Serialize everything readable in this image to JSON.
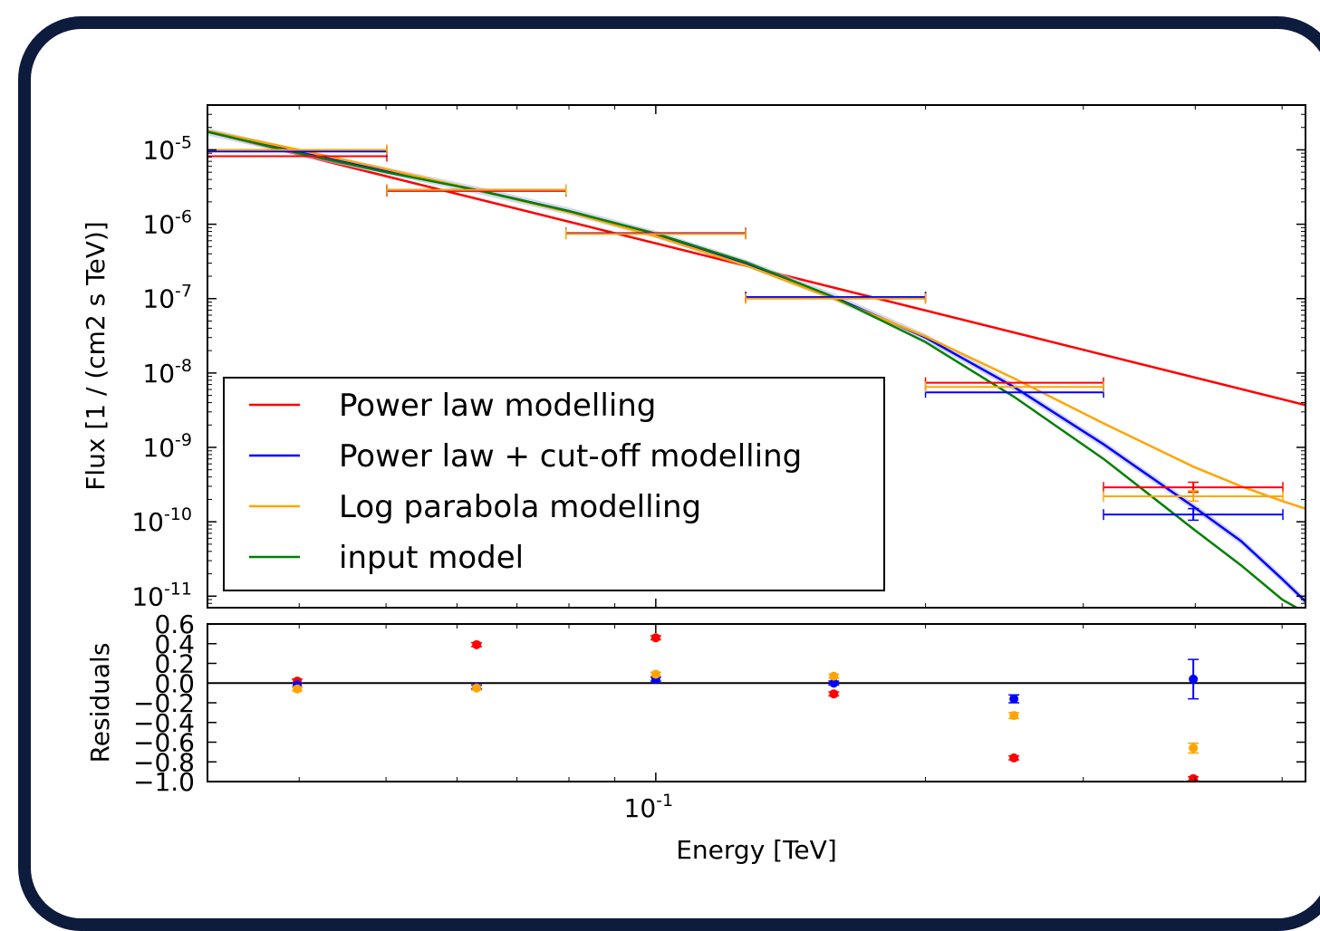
{
  "chart_data": [
    {
      "type": "line",
      "xscale": "log",
      "yscale": "log",
      "xlim": [
        0.0316,
        0.531
      ],
      "ylim": [
        7e-12,
        4e-05
      ],
      "ylabel": "Flux [1 / (cm2 s TeV)]",
      "y_ticks": [
        {
          "value": 1e-05,
          "base": "10",
          "exp": "-5"
        },
        {
          "value": 1e-06,
          "base": "10",
          "exp": "-6"
        },
        {
          "value": 1e-07,
          "base": "10",
          "exp": "-7"
        },
        {
          "value": 1e-08,
          "base": "10",
          "exp": "-8"
        },
        {
          "value": 1e-09,
          "base": "10",
          "exp": "-9"
        },
        {
          "value": 1e-10,
          "base": "10",
          "exp": "-10"
        },
        {
          "value": 1e-11,
          "base": "10",
          "exp": "-11"
        }
      ],
      "legend": {
        "placement": "lower-left"
      },
      "series": [
        {
          "name": "Power law modelling",
          "color": "#ff0000",
          "x": [
            0.0316,
            0.531
          ],
          "y": [
            1.75e-05,
            3.7e-09
          ]
        },
        {
          "name": "Power law + cut-off modelling",
          "color": "#0000ff",
          "x": [
            0.0316,
            0.04,
            0.05,
            0.063,
            0.08,
            0.1,
            0.126,
            0.158,
            0.2,
            0.251,
            0.316,
            0.398,
            0.45,
            0.5,
            0.531
          ],
          "y": [
            1.75e-05,
            9.2e-06,
            5.2e-06,
            2.9e-06,
            1.5e-06,
            7.3e-07,
            3e-07,
            1.05e-07,
            3e-08,
            6.5e-09,
            1.1e-09,
            1.6e-10,
            5.5e-11,
            1.7e-11,
            8.5e-12
          ],
          "band": true
        },
        {
          "name": "Log parabola modelling",
          "color": "#ffa500",
          "x": [
            0.0316,
            0.04,
            0.05,
            0.063,
            0.08,
            0.1,
            0.126,
            0.158,
            0.2,
            0.251,
            0.316,
            0.398,
            0.45,
            0.5,
            0.531
          ],
          "y": [
            1.8e-05,
            1e-05,
            5.5e-06,
            2.9e-06,
            1.45e-06,
            6.9e-07,
            2.8e-07,
            1e-07,
            3.1e-08,
            8.5e-09,
            2.1e-09,
            5.5e-10,
            3e-10,
            1.9e-10,
            1.5e-10
          ]
        },
        {
          "name": "input model",
          "color": "#008000",
          "x": [
            0.0316,
            0.04,
            0.05,
            0.063,
            0.08,
            0.1,
            0.126,
            0.158,
            0.2,
            0.251,
            0.316,
            0.398,
            0.45,
            0.5,
            0.531
          ],
          "y": [
            1.75e-05,
            9e-06,
            5e-06,
            2.9e-06,
            1.5e-06,
            7.5e-07,
            3.1e-07,
            1.05e-07,
            2.6e-08,
            4.8e-09,
            7e-10,
            8e-11,
            2.6e-11,
            9e-12,
            6e-12
          ]
        }
      ],
      "flux_points": [
        {
          "color": "#ff0000",
          "points": [
            {
              "x": 0.0398,
              "y": 8.2e-06,
              "xmin": 0.0316,
              "xmax": 0.0501
            },
            {
              "x": 0.0631,
              "y": 2.8e-06,
              "xmin": 0.0501,
              "xmax": 0.0794
            },
            {
              "x": 0.1,
              "y": 7.6e-07,
              "xmin": 0.0794,
              "xmax": 0.126
            },
            {
              "x": 0.158,
              "y": 1.05e-07,
              "xmin": 0.126,
              "xmax": 0.2
            },
            {
              "x": 0.251,
              "y": 7.4e-09,
              "xmin": 0.2,
              "xmax": 0.316
            },
            {
              "x": 0.398,
              "y": 2.9e-10,
              "xmin": 0.316,
              "xmax": 0.501,
              "ylo": 2.5e-10,
              "yhi": 3.4e-10
            }
          ]
        },
        {
          "color": "#0000ff",
          "points": [
            {
              "x": 0.0398,
              "y": 9.5e-06,
              "xmin": 0.0316,
              "xmax": 0.0501
            },
            {
              "x": 0.0631,
              "y": 2.9e-06,
              "xmin": 0.0501,
              "xmax": 0.0794
            },
            {
              "x": 0.1,
              "y": 7.5e-07,
              "xmin": 0.0794,
              "xmax": 0.126
            },
            {
              "x": 0.158,
              "y": 1.05e-07,
              "xmin": 0.126,
              "xmax": 0.2
            },
            {
              "x": 0.251,
              "y": 5.5e-09,
              "xmin": 0.2,
              "xmax": 0.316
            },
            {
              "x": 0.398,
              "y": 1.25e-10,
              "xmin": 0.316,
              "xmax": 0.501,
              "ylo": 1.05e-10,
              "yhi": 1.5e-10
            }
          ]
        },
        {
          "color": "#ffa500",
          "points": [
            {
              "x": 0.0398,
              "y": 1e-05,
              "xmin": 0.0316,
              "xmax": 0.0501
            },
            {
              "x": 0.0631,
              "y": 2.9e-06,
              "xmin": 0.0501,
              "xmax": 0.0794
            },
            {
              "x": 0.1,
              "y": 7.4e-07,
              "xmin": 0.0794,
              "xmax": 0.126
            },
            {
              "x": 0.158,
              "y": 1e-07,
              "xmin": 0.126,
              "xmax": 0.2
            },
            {
              "x": 0.251,
              "y": 6.5e-09,
              "xmin": 0.2,
              "xmax": 0.316
            },
            {
              "x": 0.398,
              "y": 2.2e-10,
              "xmin": 0.316,
              "xmax": 0.501,
              "ylo": 1.9e-10,
              "yhi": 2.6e-10
            }
          ]
        }
      ]
    },
    {
      "type": "scatter",
      "xscale": "log",
      "xlim": [
        0.0316,
        0.531
      ],
      "ylim": [
        -1.0,
        0.6
      ],
      "xlabel": "Energy [TeV]",
      "ylabel": "Residuals",
      "x_ticks": [
        {
          "value": 0.1,
          "base": "10",
          "exp": "-1"
        }
      ],
      "y_ticks": [
        {
          "value": 0.6,
          "label": "0.6"
        },
        {
          "value": 0.4,
          "label": "0.4"
        },
        {
          "value": 0.2,
          "label": "0.2"
        },
        {
          "value": 0.0,
          "label": "0.0"
        },
        {
          "value": -0.2,
          "label": "−0.2"
        },
        {
          "value": -0.4,
          "label": "−0.4"
        },
        {
          "value": -0.6,
          "label": "−0.6"
        },
        {
          "value": -0.8,
          "label": "−0.8"
        },
        {
          "value": -1.0,
          "label": "−1.0"
        }
      ],
      "zero_line": 0.0,
      "series": [
        {
          "color": "#ff0000",
          "x": [
            0.0398,
            0.0631,
            0.1,
            0.158,
            0.251,
            0.398
          ],
          "y": [
            0.02,
            0.39,
            0.46,
            -0.11,
            -0.76,
            -0.97
          ],
          "err": [
            0.02,
            0.02,
            0.02,
            0.02,
            0.02,
            0.02
          ]
        },
        {
          "color": "#0000ff",
          "x": [
            0.0398,
            0.0631,
            0.1,
            0.158,
            0.251,
            0.398
          ],
          "y": [
            -0.02,
            -0.04,
            0.04,
            0.0,
            -0.16,
            0.04
          ],
          "err": [
            0.02,
            0.02,
            0.02,
            0.02,
            0.04,
            0.2
          ]
        },
        {
          "color": "#ffa500",
          "x": [
            0.0398,
            0.0631,
            0.1,
            0.158,
            0.251,
            0.398
          ],
          "y": [
            -0.06,
            -0.05,
            0.09,
            0.07,
            -0.33,
            -0.66
          ],
          "err": [
            0.02,
            0.02,
            0.02,
            0.02,
            0.03,
            0.05
          ]
        }
      ]
    }
  ]
}
